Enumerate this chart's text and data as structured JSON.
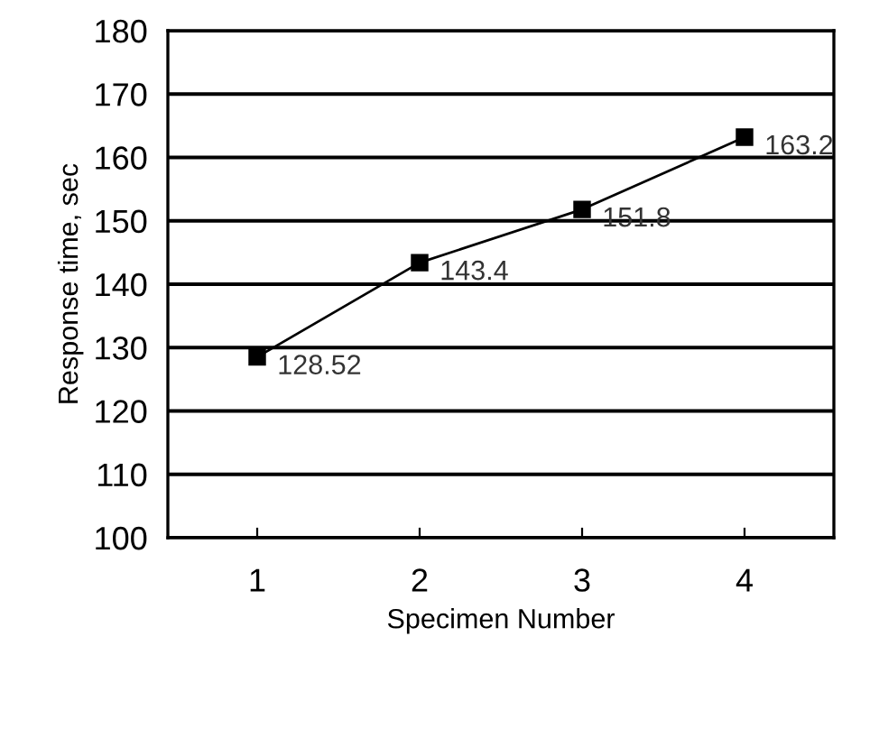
{
  "chart_data": {
    "type": "line",
    "xlabel": "Specimen Number",
    "ylabel": "Response time, sec",
    "categories": [
      "1",
      "2",
      "3",
      "4"
    ],
    "series": [
      {
        "color": "#000000",
        "values": [
          128.52,
          143.4,
          151.8,
          163.2
        ]
      }
    ],
    "value_labels": [
      "128.52",
      "143.4",
      "151.8",
      "163.2"
    ],
    "ylim": [
      100,
      180
    ],
    "yticks": [
      100,
      110,
      120,
      130,
      140,
      150,
      160,
      170,
      180
    ],
    "grid": "y",
    "marker": "square",
    "line_style": "solid",
    "legend": false
  }
}
